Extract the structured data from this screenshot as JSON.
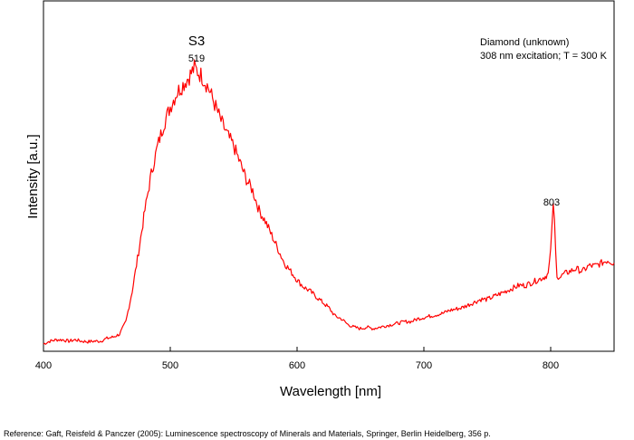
{
  "chart_data": {
    "type": "line",
    "xlabel": "Wavelength [nm]",
    "ylabel": "Intensity [a.u.]",
    "xlim": [
      400,
      850
    ],
    "ylim": [
      0,
      1
    ],
    "x_ticks": [
      400,
      500,
      600,
      700,
      800
    ],
    "grid": false,
    "line_color": "#ff0000",
    "annotations": {
      "sample": "Diamond (unknown)",
      "conditions": "308 nm excitation; T = 300 K",
      "band_name": "S3",
      "peaks": [
        {
          "label": "519",
          "x": 519,
          "y": 1.0
        },
        {
          "label": "803",
          "x": 803,
          "y": 0.5
        }
      ]
    },
    "series": [
      {
        "x": [
          400,
          405,
          410,
          415,
          420,
          425,
          430,
          435,
          440,
          445,
          450,
          455,
          460,
          465,
          470,
          475,
          480,
          485,
          490,
          495,
          500,
          505,
          510,
          515,
          519,
          525,
          530,
          535,
          540,
          545,
          550,
          555,
          560,
          565,
          570,
          575,
          580,
          585,
          590,
          595,
          600,
          605,
          610,
          615,
          620,
          625,
          630,
          635,
          640,
          645,
          650,
          655,
          660,
          665,
          670,
          675,
          680,
          685,
          690,
          695,
          700,
          705,
          710,
          715,
          720,
          725,
          730,
          735,
          740,
          745,
          750,
          755,
          760,
          765,
          770,
          775,
          780,
          785,
          790,
          795,
          798,
          800,
          801,
          802,
          803,
          804,
          805,
          806,
          808,
          810,
          815,
          820,
          825,
          830,
          835,
          840,
          845,
          850
        ],
        "y": [
          0.01,
          0.02,
          0.025,
          0.025,
          0.02,
          0.025,
          0.02,
          0.018,
          0.02,
          0.02,
          0.03,
          0.035,
          0.045,
          0.09,
          0.2,
          0.34,
          0.49,
          0.62,
          0.72,
          0.8,
          0.86,
          0.91,
          0.94,
          0.97,
          1.0,
          0.97,
          0.93,
          0.87,
          0.81,
          0.76,
          0.72,
          0.66,
          0.6,
          0.56,
          0.49,
          0.45,
          0.4,
          0.35,
          0.3,
          0.27,
          0.24,
          0.215,
          0.2,
          0.18,
          0.16,
          0.14,
          0.11,
          0.1,
          0.08,
          0.07,
          0.065,
          0.07,
          0.065,
          0.07,
          0.075,
          0.08,
          0.085,
          0.09,
          0.09,
          0.1,
          0.105,
          0.11,
          0.115,
          0.12,
          0.13,
          0.135,
          0.14,
          0.15,
          0.16,
          0.17,
          0.17,
          0.18,
          0.19,
          0.2,
          0.21,
          0.22,
          0.22,
          0.23,
          0.24,
          0.25,
          0.26,
          0.34,
          0.44,
          0.5,
          0.45,
          0.33,
          0.26,
          0.25,
          0.25,
          0.26,
          0.27,
          0.28,
          0.27,
          0.29,
          0.29,
          0.3,
          0.31,
          0.3
        ]
      }
    ]
  },
  "reference": "Reference: Gaft, Reisfeld & Panczer (2005): Luminescence spectroscopy of Minerals and Materials, Springer, Berlin Heidelberg, 356 p."
}
